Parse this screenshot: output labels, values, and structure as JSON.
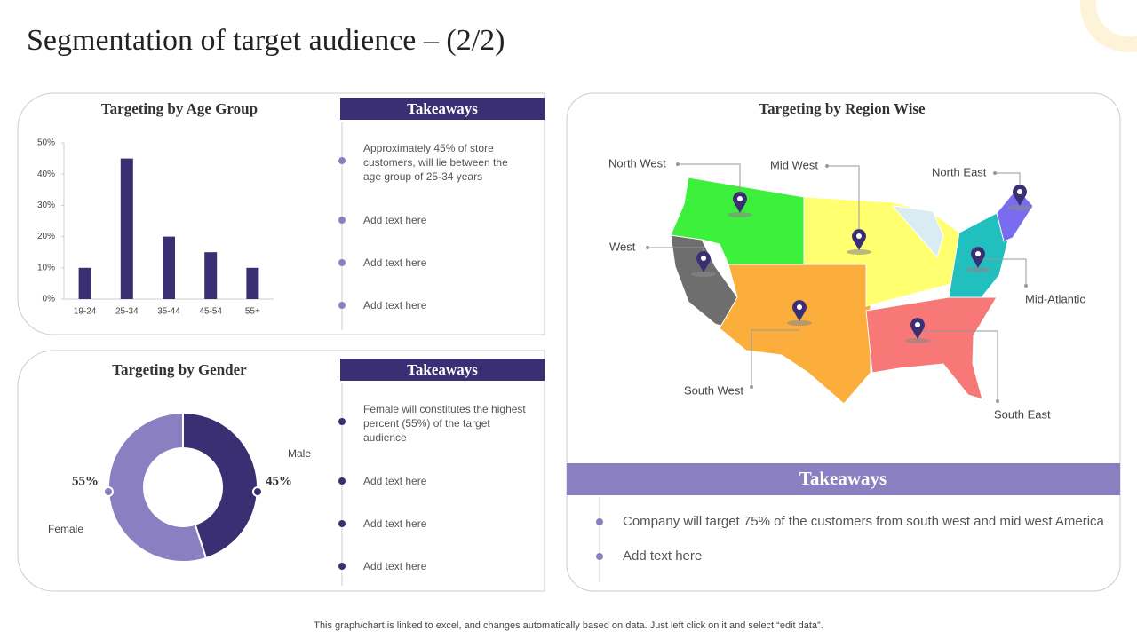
{
  "title": "Segmentation of target audience – (2/2)",
  "footer": "This graph/chart is linked to excel, and changes automatically based on data. Just left click on it and select “edit data”.",
  "chart_data": [
    {
      "type": "bar",
      "title": "Targeting by Age Group",
      "categories": [
        "19-24",
        "25-34",
        "35-44",
        "45-54",
        "55+"
      ],
      "values": [
        10,
        45,
        20,
        15,
        10
      ],
      "color": "#3b2f73",
      "ylim": [
        0,
        50
      ],
      "yticks": [
        {
          "value": 0,
          "label": "0%"
        },
        {
          "value": 10,
          "label": "10%"
        },
        {
          "value": 20,
          "label": "20%"
        },
        {
          "value": 30,
          "label": "30%"
        },
        {
          "value": 40,
          "label": "40%"
        },
        {
          "value": 50,
          "label": "50%"
        }
      ]
    },
    {
      "type": "pie",
      "title": "Targeting by Gender",
      "categories": [
        "Female",
        "Male"
      ],
      "values": [
        55,
        45
      ],
      "value_labels": [
        "55%",
        "45%"
      ],
      "colors": [
        "#8a7fc0",
        "#3b2f73"
      ]
    }
  ],
  "age_takeaways": {
    "heading": "Takeaways",
    "items": [
      "Approximately 45% of store customers, will lie between the age group of 25-34 years",
      "Add text here",
      "Add text here",
      "Add text here"
    ]
  },
  "gender_takeaways": {
    "heading": "Takeaways",
    "items": [
      "Female will constitutes the highest percent (55%) of the target audience",
      "Add text here",
      "Add text here",
      "Add text here"
    ]
  },
  "region": {
    "title": "Targeting by Region Wise",
    "regions": [
      "North West",
      "Mid West",
      "North East",
      "West",
      "Mid-Atlantic",
      "South West",
      "South East"
    ],
    "takeaways": {
      "heading": "Takeaways",
      "items": [
        "Company will target 75% of the customers from south west and mid west America",
        "Add text here"
      ]
    }
  }
}
